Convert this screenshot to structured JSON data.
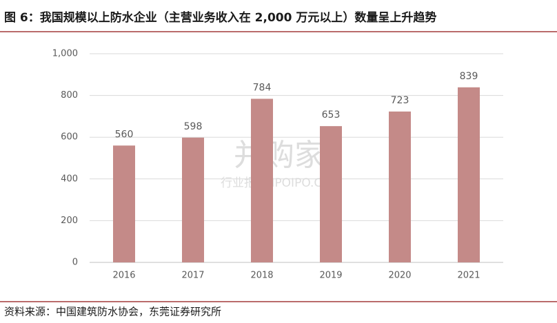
{
  "chart_data": {
    "type": "bar",
    "title": "图 6：我国规模以上防水企业（主营业务收入在 2,000 万元以上）数量呈上升趋势",
    "source": "资料来源：中国建筑防水协会，东莞证券研究所",
    "watermark": {
      "brand": "并购家",
      "text": "行业报告 IPOIPO.CN"
    },
    "categories": [
      "2016",
      "2017",
      "2018",
      "2019",
      "2020",
      "2021"
    ],
    "values": [
      560,
      598,
      784,
      653,
      723,
      839
    ],
    "color": "#c48a88",
    "ylim": [
      0,
      1000
    ],
    "yticks": [
      0,
      200,
      400,
      600,
      800,
      {
        "value": 1000,
        "label": "1,000"
      }
    ],
    "grid": true
  }
}
